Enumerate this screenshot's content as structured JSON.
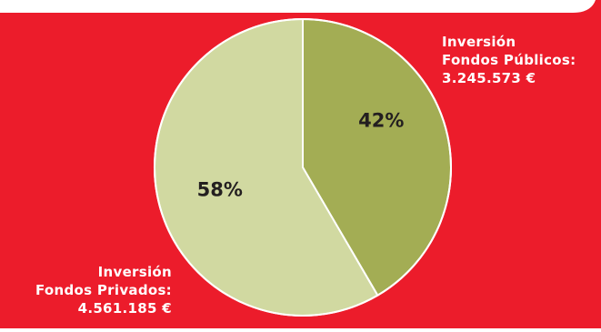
{
  "colors": {
    "background": "#ec1c2b",
    "header_tab": "#ffffff",
    "text_on_bg": "#ffffff",
    "slice_outline": "#ffffff",
    "percent_text": "#231f20"
  },
  "chart_data": {
    "type": "pie",
    "slices": [
      {
        "label_lines": [
          "Inversión",
          "Fondos Públicos:",
          "3.245.573 €"
        ],
        "value": 3245573,
        "percent_label": "42%",
        "color": "#a3ad54"
      },
      {
        "label_lines": [
          "Inversión",
          "Fondos Privados:",
          "4.561.185 €"
        ],
        "value": 4561185,
        "percent_label": "58%",
        "color": "#d1d9a1"
      }
    ]
  }
}
